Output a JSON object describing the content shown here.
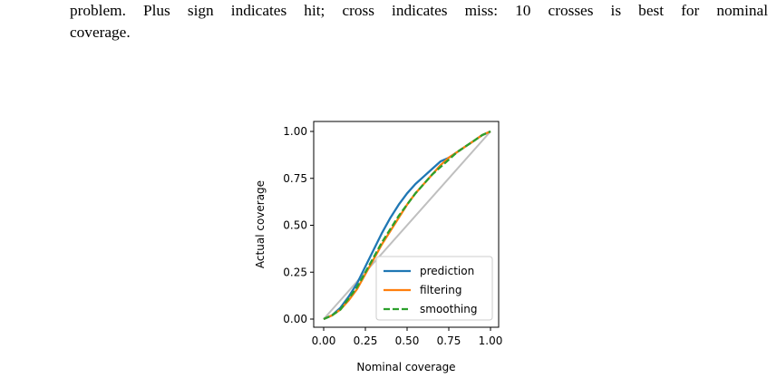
{
  "caption": {
    "line1": "problem. Plus sign indicates hit; cross indicates miss: 10 crosses is best for nominal",
    "line2": "coverage."
  },
  "chart_data": {
    "type": "line",
    "xlabel": "Nominal coverage",
    "ylabel": "Actual coverage",
    "xlim": [
      0.0,
      1.0
    ],
    "ylim": [
      0.0,
      1.0
    ],
    "xticks": [
      "0.00",
      "0.25",
      "0.50",
      "0.75",
      "1.00"
    ],
    "yticks": [
      "0.00",
      "0.25",
      "0.50",
      "0.75",
      "1.00"
    ],
    "grid": false,
    "legend_position": "lower-right",
    "reference_line": {
      "x": [
        0.0,
        1.0
      ],
      "y": [
        0.0,
        1.0
      ],
      "color": "#bfbfbf"
    },
    "series": [
      {
        "name": "prediction",
        "color": "#1f77b4",
        "style": "solid",
        "x": [
          0.0,
          0.05,
          0.1,
          0.15,
          0.2,
          0.25,
          0.3,
          0.35,
          0.4,
          0.45,
          0.5,
          0.55,
          0.6,
          0.65,
          0.7,
          0.75,
          0.8,
          0.85,
          0.9,
          0.95,
          1.0
        ],
        "y": [
          0.0,
          0.02,
          0.06,
          0.12,
          0.19,
          0.28,
          0.37,
          0.46,
          0.54,
          0.61,
          0.67,
          0.72,
          0.76,
          0.8,
          0.84,
          0.86,
          0.89,
          0.92,
          0.95,
          0.98,
          1.0
        ]
      },
      {
        "name": "filtering",
        "color": "#ff7f0e",
        "style": "solid",
        "x": [
          0.0,
          0.05,
          0.1,
          0.15,
          0.2,
          0.25,
          0.3,
          0.35,
          0.4,
          0.45,
          0.5,
          0.55,
          0.6,
          0.65,
          0.7,
          0.75,
          0.8,
          0.85,
          0.9,
          0.95,
          1.0
        ],
        "y": [
          0.0,
          0.02,
          0.05,
          0.1,
          0.16,
          0.24,
          0.32,
          0.4,
          0.47,
          0.54,
          0.61,
          0.67,
          0.72,
          0.77,
          0.82,
          0.86,
          0.89,
          0.92,
          0.95,
          0.98,
          1.0
        ]
      },
      {
        "name": "smoothing",
        "color": "#2ca02c",
        "style": "dashed",
        "x": [
          0.0,
          0.05,
          0.1,
          0.15,
          0.2,
          0.25,
          0.3,
          0.35,
          0.4,
          0.45,
          0.5,
          0.55,
          0.6,
          0.65,
          0.7,
          0.75,
          0.8,
          0.85,
          0.9,
          0.95,
          1.0
        ],
        "y": [
          0.0,
          0.02,
          0.05,
          0.11,
          0.17,
          0.25,
          0.33,
          0.41,
          0.48,
          0.55,
          0.61,
          0.67,
          0.72,
          0.77,
          0.81,
          0.85,
          0.89,
          0.92,
          0.95,
          0.98,
          1.0
        ]
      }
    ]
  }
}
